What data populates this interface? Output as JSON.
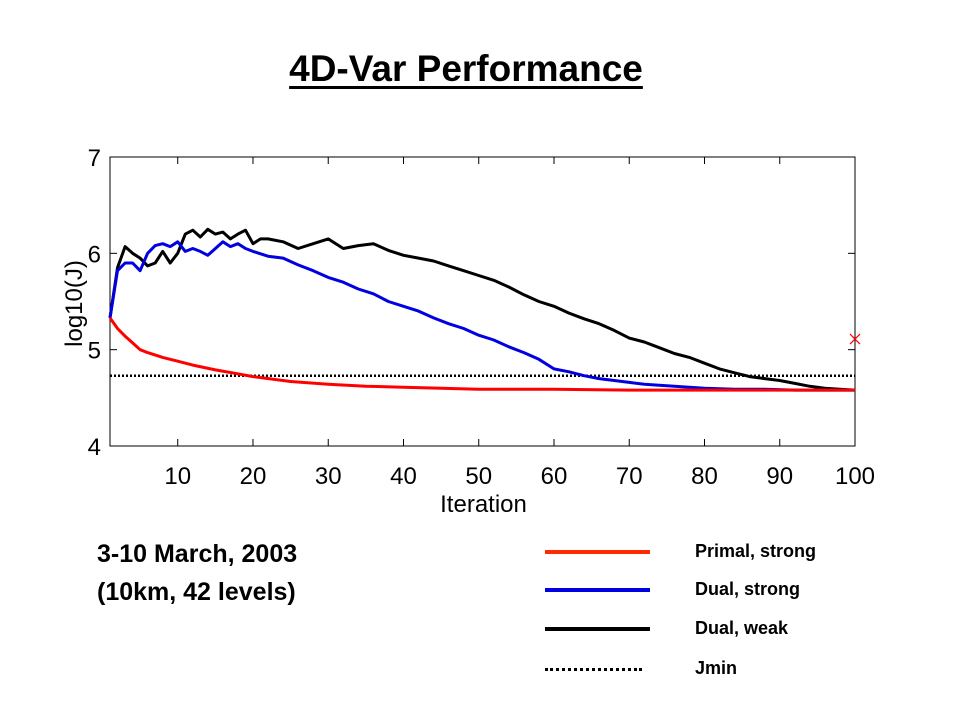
{
  "title": "4D-Var Performance",
  "subtitle_lines": [
    "3-10 March, 2003",
    "(10km, 42 levels)"
  ],
  "colors": {
    "primal_strong": "#ff0000",
    "dual_strong": "#0000e0",
    "dual_weak": "#000000",
    "jmin": "#000000",
    "marker": "#ff0000"
  },
  "chart_data": {
    "type": "line",
    "title": "4D-Var Performance",
    "xlabel": "Iteration",
    "ylabel": "log10(J)",
    "xlim": [
      1,
      100
    ],
    "ylim": [
      4,
      7
    ],
    "xticks": [
      10,
      20,
      30,
      40,
      50,
      60,
      70,
      80,
      90,
      100
    ],
    "yticks": [
      4,
      5,
      6,
      7
    ],
    "grid": false,
    "legend_position": "bottom-right, outside plot",
    "series": [
      {
        "name": "Primal, strong",
        "color": "#ff0000",
        "style": "solid",
        "x": [
          1,
          2,
          3,
          4,
          5,
          6,
          8,
          10,
          12,
          15,
          18,
          20,
          25,
          30,
          35,
          40,
          45,
          50,
          60,
          70,
          80,
          90,
          100
        ],
        "y": [
          5.33,
          5.22,
          5.14,
          5.07,
          5.0,
          4.97,
          4.92,
          4.88,
          4.84,
          4.79,
          4.75,
          4.72,
          4.67,
          4.64,
          4.62,
          4.61,
          4.6,
          4.59,
          4.59,
          4.58,
          4.58,
          4.58,
          4.58
        ]
      },
      {
        "name": "Dual, strong",
        "color": "#0000e0",
        "style": "solid",
        "x": [
          1,
          2,
          3,
          4,
          5,
          6,
          7,
          8,
          9,
          10,
          11,
          12,
          13,
          14,
          15,
          16,
          17,
          18,
          19,
          20,
          22,
          24,
          26,
          28,
          30,
          32,
          34,
          36,
          38,
          40,
          42,
          44,
          46,
          48,
          50,
          52,
          54,
          56,
          58,
          60,
          62,
          64,
          66,
          68,
          70,
          72,
          74,
          76,
          78,
          80,
          84,
          88,
          92,
          96,
          100
        ],
        "y": [
          5.33,
          5.82,
          5.9,
          5.9,
          5.82,
          6.0,
          6.08,
          6.1,
          6.07,
          6.12,
          6.02,
          6.05,
          6.02,
          5.98,
          6.05,
          6.12,
          6.07,
          6.1,
          6.05,
          6.02,
          5.97,
          5.95,
          5.88,
          5.82,
          5.75,
          5.7,
          5.63,
          5.58,
          5.5,
          5.45,
          5.4,
          5.33,
          5.27,
          5.22,
          5.15,
          5.1,
          5.03,
          4.97,
          4.9,
          4.8,
          4.77,
          4.73,
          4.7,
          4.68,
          4.66,
          4.64,
          4.63,
          4.62,
          4.61,
          4.6,
          4.59,
          4.59,
          4.58,
          4.58,
          4.58
        ]
      },
      {
        "name": "Dual, weak",
        "color": "#000000",
        "style": "solid",
        "x": [
          1,
          2,
          3,
          4,
          5,
          6,
          7,
          8,
          9,
          10,
          11,
          12,
          13,
          14,
          15,
          16,
          17,
          18,
          19,
          20,
          21,
          22,
          24,
          26,
          28,
          30,
          32,
          34,
          36,
          38,
          40,
          42,
          44,
          46,
          48,
          50,
          52,
          54,
          56,
          58,
          60,
          62,
          64,
          66,
          68,
          70,
          72,
          74,
          76,
          78,
          80,
          82,
          84,
          86,
          88,
          90,
          92,
          94,
          96,
          98,
          100
        ],
        "y": [
          5.33,
          5.85,
          6.07,
          6.0,
          5.95,
          5.87,
          5.9,
          6.02,
          5.9,
          6.0,
          6.2,
          6.24,
          6.17,
          6.25,
          6.2,
          6.22,
          6.15,
          6.2,
          6.24,
          6.1,
          6.15,
          6.15,
          6.12,
          6.05,
          6.1,
          6.15,
          6.05,
          6.08,
          6.1,
          6.03,
          5.98,
          5.95,
          5.92,
          5.87,
          5.82,
          5.77,
          5.72,
          5.65,
          5.57,
          5.5,
          5.45,
          5.38,
          5.32,
          5.27,
          5.2,
          5.12,
          5.08,
          5.02,
          4.96,
          4.92,
          4.86,
          4.8,
          4.76,
          4.72,
          4.7,
          4.68,
          4.65,
          4.62,
          4.6,
          4.59,
          4.58
        ]
      },
      {
        "name": "Jmin",
        "color": "#000000",
        "style": "dotted",
        "x": [
          1,
          100
        ],
        "y": [
          4.73,
          4.73
        ]
      }
    ],
    "markers": [
      {
        "symbol": "x",
        "color": "#ff0000",
        "x": 100,
        "y": 5.11
      }
    ]
  }
}
